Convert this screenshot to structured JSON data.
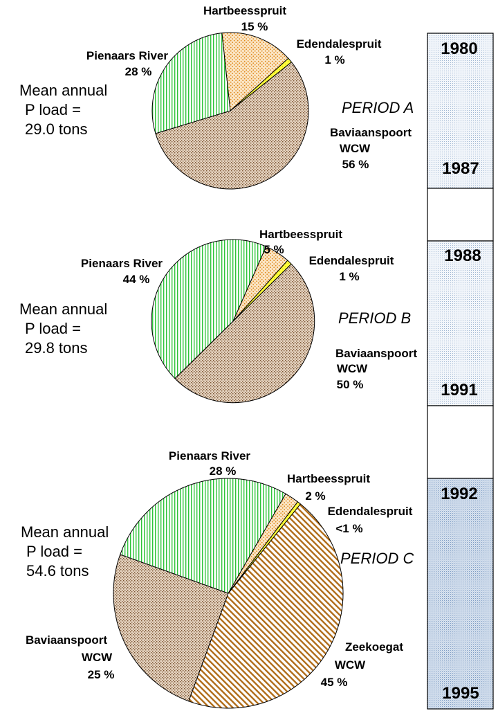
{
  "chart_data": [
    {
      "type": "pie",
      "period": "PERIOD A",
      "summary": [
        "Mean annual",
        "P load =",
        "29.0 tons"
      ],
      "years": {
        "start": "1980",
        "end": "1987"
      },
      "slices": [
        {
          "name": "Baviaanspoort WCW",
          "label_lines": [
            "Baviaanspoort",
            "WCW",
            "56 %"
          ],
          "value": 56
        },
        {
          "name": "Pienaars River",
          "label_lines": [
            "Pienaars River",
            "28 %"
          ],
          "value": 28
        },
        {
          "name": "Hartbeesspruit",
          "label_lines": [
            "Hartbeesspruit",
            "15 %"
          ],
          "value": 15
        },
        {
          "name": "Edendalespruit",
          "label_lines": [
            "Edendalespruit",
            "1 %"
          ],
          "value": 1
        }
      ]
    },
    {
      "type": "pie",
      "period": "PERIOD B",
      "summary": [
        "Mean annual",
        "P load =",
        "29.8 tons"
      ],
      "years": {
        "start": "1988",
        "end": "1991"
      },
      "slices": [
        {
          "name": "Baviaanspoort WCW",
          "label_lines": [
            "Baviaanspoort",
            "WCW",
            "50 %"
          ],
          "value": 50
        },
        {
          "name": "Pienaars River",
          "label_lines": [
            "Pienaars River",
            "44 %"
          ],
          "value": 44
        },
        {
          "name": "Hartbeesspruit",
          "label_lines": [
            "Hartbeesspruit",
            "5 %"
          ],
          "value": 5
        },
        {
          "name": "Edendalespruit",
          "label_lines": [
            "Edendalespruit",
            "1 %"
          ],
          "value": 1
        }
      ]
    },
    {
      "type": "pie",
      "period": "PERIOD C",
      "summary": [
        "Mean annual",
        "P load =",
        "54.6 tons"
      ],
      "years": {
        "start": "1992",
        "end": "1995"
      },
      "slices": [
        {
          "name": "Zeekoegat WCW",
          "label_lines": [
            "Zeekoegat",
            "WCW",
            "45 %"
          ],
          "value": 45
        },
        {
          "name": "Baviaanspoort WCW",
          "label_lines": [
            "Baviaanspoort",
            "WCW",
            "25 %"
          ],
          "value": 25
        },
        {
          "name": "Pienaars River",
          "label_lines": [
            "Pienaars River",
            "28 %"
          ],
          "value": 28
        },
        {
          "name": "Hartbeesspruit",
          "label_lines": [
            "Hartbeesspruit",
            "2 %"
          ],
          "value": 2
        },
        {
          "name": "Edendalespruit",
          "label_lines": [
            "Edendalespruit",
            "<1 %"
          ],
          "value": 0.5
        }
      ]
    }
  ],
  "colors": {
    "Baviaanspoort WCW": "#a9805a",
    "Pienaars River": "#2fc43a",
    "Hartbeesspruit": "#e9a24a",
    "Edendalespruit": "#e6e000",
    "Zeekoegat WCW": "#b06c18",
    "timeline_light": "#dde6f0",
    "timeline_dark": "#b9cbe0"
  }
}
